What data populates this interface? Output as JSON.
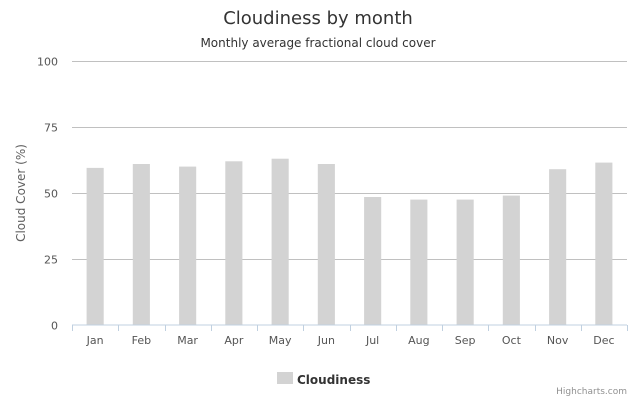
{
  "chart_data": {
    "type": "bar",
    "title": "Cloudiness by month",
    "subtitle": "Monthly average fractional cloud cover",
    "xlabel": "",
    "ylabel": "Cloud Cover (%)",
    "ylim": [
      0,
      100
    ],
    "yticks": [
      0,
      25,
      50,
      75,
      100
    ],
    "categories": [
      "Jan",
      "Feb",
      "Mar",
      "Apr",
      "May",
      "Jun",
      "Jul",
      "Aug",
      "Sep",
      "Oct",
      "Nov",
      "Dec"
    ],
    "series": [
      {
        "name": "Cloudiness",
        "color": "#d3d3d3",
        "values": [
          59.5,
          61,
          60,
          62,
          63,
          61,
          48.5,
          47.5,
          47.5,
          49,
          59,
          61.5
        ]
      }
    ],
    "grid": true,
    "legend": "bottom-center",
    "credits": "Highcharts.com"
  }
}
